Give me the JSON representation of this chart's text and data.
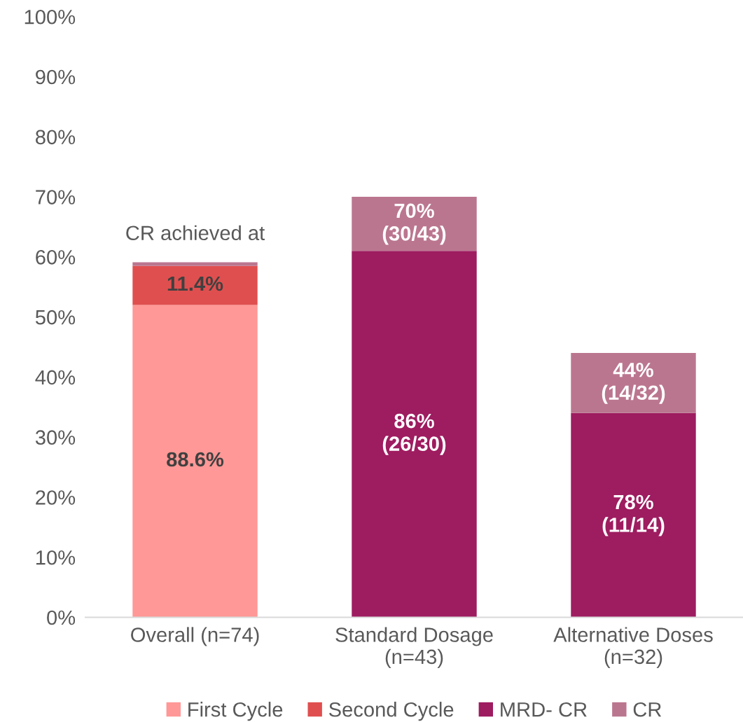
{
  "chart_data": {
    "type": "bar",
    "stacked": true,
    "categories": [
      "Overall (n=74)",
      "Standard Dosage\n(n=43)",
      "Alternative Doses\n(n=32)"
    ],
    "series": [
      {
        "name": "First Cycle",
        "color": "#ff9896",
        "values": [
          52,
          null,
          null
        ]
      },
      {
        "name": "Second Cycle",
        "color": "#e04f4f",
        "values": [
          6.5,
          null,
          null
        ]
      },
      {
        "name": "MRD- CR",
        "color": "#9e1c60",
        "values": [
          null,
          61,
          34
        ]
      },
      {
        "name": "CR",
        "color": "#bb768f",
        "values": [
          0.6,
          9,
          10
        ]
      }
    ],
    "ylim": [
      0,
      100
    ],
    "yticks": [
      {
        "value": 0,
        "label": "0%"
      },
      {
        "value": 10,
        "label": "10%"
      },
      {
        "value": 20,
        "label": "20%"
      },
      {
        "value": 30,
        "label": "30%"
      },
      {
        "value": 40,
        "label": "40%"
      },
      {
        "value": 50,
        "label": "50%"
      },
      {
        "value": 60,
        "label": "60%"
      },
      {
        "value": 70,
        "label": "70%"
      },
      {
        "value": 80,
        "label": "80%"
      },
      {
        "value": 90,
        "label": "90%"
      },
      {
        "value": 100,
        "label": "100%"
      }
    ],
    "annotations": [
      "CR achieved at",
      "88.6%",
      "11.4%",
      "86%\n(26/30)",
      "78%\n(11/14)",
      "70%\n(30/43)",
      "44%\n(14/32)"
    ],
    "legend": "bottom",
    "grid": false
  }
}
